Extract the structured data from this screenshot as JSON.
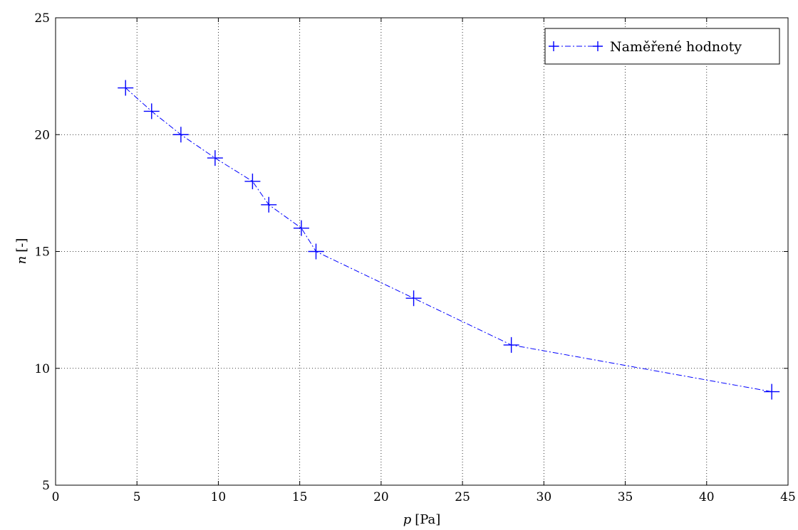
{
  "chart_data": {
    "type": "line",
    "title": "",
    "xlabel_var": "p",
    "xlabel_unit": "[Pa]",
    "ylabel_var": "n",
    "ylabel_unit": "[-]",
    "xlim": [
      0,
      45
    ],
    "ylim": [
      5,
      25
    ],
    "xticks": [
      0,
      5,
      10,
      15,
      20,
      25,
      30,
      35,
      40,
      45
    ],
    "yticks": [
      5,
      10,
      15,
      20,
      25
    ],
    "grid": true,
    "legend_position": "top-right",
    "series": [
      {
        "name": "Naměřené hodnoty",
        "color": "#0000ff",
        "line_style": "dash-dot",
        "marker": "plus",
        "x": [
          4.3,
          5.9,
          7.7,
          9.8,
          12.1,
          13.1,
          15.1,
          16.0,
          22.0,
          28.0,
          44.0
        ],
        "y": [
          22,
          21,
          20,
          19,
          18,
          17,
          16,
          15,
          13,
          11,
          9
        ]
      }
    ]
  }
}
